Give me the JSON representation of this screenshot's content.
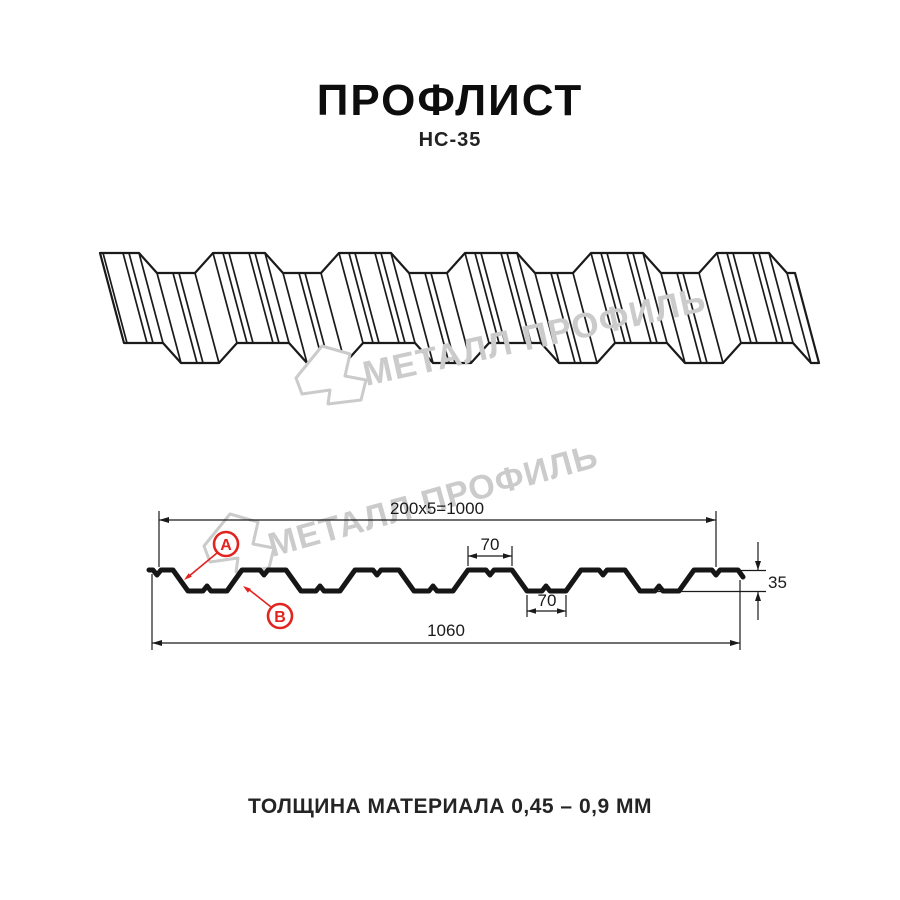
{
  "page": {
    "title": "ПРОФЛИСТ",
    "subtitle": "НС-35",
    "footer": "ТОЛЩИНА МАТЕРИАЛА 0,45 – 0,9 ММ"
  },
  "watermark": {
    "brand": "МЕТАЛЛ ПРОФИЛЬ"
  },
  "diagram": {
    "dim_cover_width": "200x5=1000",
    "dim_rib_top": "70",
    "dim_rib_bottom": "70",
    "dim_height": "35",
    "dim_full_width": "1060",
    "label_a": "А",
    "label_b": "В"
  },
  "colors": {
    "accent_red": "#e2231f",
    "line_black": "#1a1a1a",
    "watermark_gray": "#cbcbcb"
  }
}
